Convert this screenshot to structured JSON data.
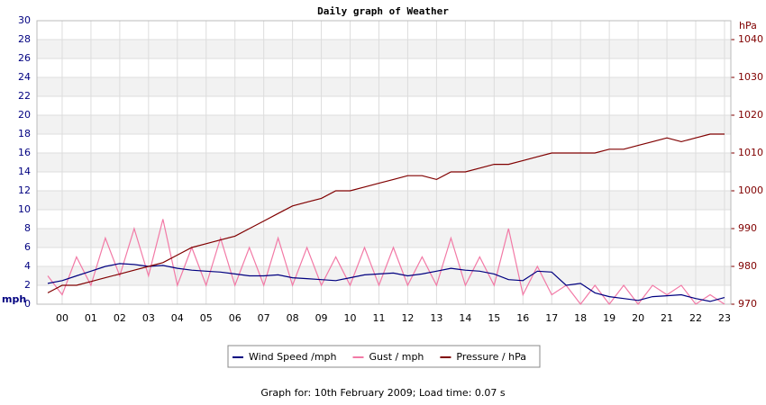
{
  "chart_data": {
    "type": "line",
    "title": "Daily graph of Weather",
    "ylabel": "mph",
    "y2label": "hPa",
    "footer": "Graph for: 10th February 2009; Load time: 0.07 s",
    "xlim": [
      -0.875,
      23.22
    ],
    "xticks": [
      {
        "value": 0,
        "label": "00"
      },
      {
        "value": 1,
        "label": "01"
      },
      {
        "value": 2,
        "label": "02"
      },
      {
        "value": 3,
        "label": "03"
      },
      {
        "value": 4,
        "label": "04"
      },
      {
        "value": 5,
        "label": "05"
      },
      {
        "value": 6,
        "label": "06"
      },
      {
        "value": 7,
        "label": "07"
      },
      {
        "value": 8,
        "label": "08"
      },
      {
        "value": 9,
        "label": "09"
      },
      {
        "value": 10,
        "label": "10"
      },
      {
        "value": 11,
        "label": "11"
      },
      {
        "value": 12,
        "label": "12"
      },
      {
        "value": 13,
        "label": "13"
      },
      {
        "value": 14,
        "label": "14"
      },
      {
        "value": 15,
        "label": "15"
      },
      {
        "value": 16,
        "label": "16"
      },
      {
        "value": 17,
        "label": "17"
      },
      {
        "value": 18,
        "label": "18"
      },
      {
        "value": 19,
        "label": "19"
      },
      {
        "value": 20,
        "label": "20"
      },
      {
        "value": 21,
        "label": "21"
      },
      {
        "value": 22,
        "label": "22"
      },
      {
        "value": 23,
        "label": "23"
      }
    ],
    "ylim": [
      0,
      30
    ],
    "yticks": [
      0,
      2,
      4,
      6,
      8,
      10,
      12,
      14,
      16,
      18,
      20,
      22,
      24,
      26,
      28,
      30
    ],
    "y2lim": [
      970,
      1045
    ],
    "y2ticks": [
      970,
      980,
      990,
      1000,
      1010,
      1020,
      1030,
      1040
    ],
    "grid": true,
    "x": [
      -0.5,
      0,
      0.5,
      1,
      1.5,
      2,
      2.5,
      3,
      3.5,
      4,
      4.5,
      5,
      5.5,
      6,
      6.5,
      7,
      7.5,
      8,
      8.5,
      9,
      9.5,
      10,
      10.5,
      11,
      11.5,
      12,
      12.5,
      13,
      13.5,
      14,
      14.5,
      15,
      15.5,
      16,
      16.5,
      17,
      17.5,
      18,
      18.5,
      19,
      19.5,
      20,
      20.5,
      21,
      21.5,
      22,
      22.5,
      23
    ],
    "series": [
      {
        "name": "Gust / mph",
        "color": "#f27aa6",
        "values": [
          3,
          1,
          5,
          2,
          7,
          3,
          8,
          3,
          9,
          2,
          6,
          2,
          7,
          2,
          6,
          2,
          7,
          2,
          6,
          2,
          5,
          2,
          6,
          2,
          6,
          2,
          5,
          2,
          7,
          2,
          5,
          2,
          8,
          1,
          4,
          1,
          2,
          0,
          2,
          0,
          2,
          0,
          2,
          1,
          2,
          0,
          1,
          0
        ]
      },
      {
        "name": "Wind Speed /mph",
        "color": "#000080",
        "values": [
          2.2,
          2.5,
          3.0,
          3.5,
          4.0,
          4.3,
          4.2,
          4.0,
          4.1,
          3.8,
          3.6,
          3.5,
          3.4,
          3.2,
          3.0,
          3.0,
          3.1,
          2.8,
          2.7,
          2.6,
          2.5,
          2.8,
          3.1,
          3.2,
          3.3,
          3.0,
          3.2,
          3.5,
          3.8,
          3.6,
          3.5,
          3.2,
          2.6,
          2.5,
          3.5,
          3.4,
          2.0,
          2.2,
          1.2,
          0.8,
          0.6,
          0.4,
          0.8,
          0.9,
          1.0,
          0.6,
          0.3,
          0.7
        ]
      },
      {
        "name": "Pressure / hPa",
        "color": "#800000",
        "axis": "y2",
        "values": [
          973,
          975,
          975,
          976,
          977,
          978,
          979,
          980,
          981,
          983,
          985,
          986,
          987,
          988,
          990,
          992,
          994,
          996,
          997,
          998,
          1000,
          1000,
          1001,
          1002,
          1003,
          1004,
          1004,
          1003,
          1005,
          1005,
          1006,
          1007,
          1007,
          1008,
          1009,
          1010,
          1010,
          1010,
          1010,
          1011,
          1011,
          1012,
          1013,
          1014,
          1013,
          1014,
          1015,
          1015
        ]
      }
    ],
    "legend_order": [
      1,
      0,
      2
    ]
  }
}
